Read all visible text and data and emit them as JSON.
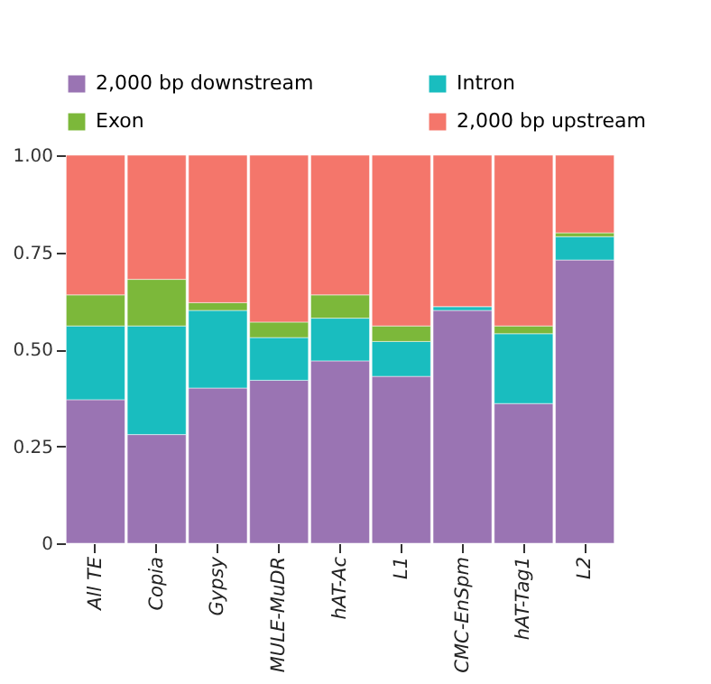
{
  "chart_data": {
    "type": "bar",
    "stacked": true,
    "categories": [
      "All TE",
      "Copia",
      "Gypsy",
      "MULE-MuDR",
      "hAT-Ac",
      "L1",
      "CMC-EnSpm",
      "hAT-Tag1",
      "L2"
    ],
    "series": [
      {
        "name": "2,000 bp downstream",
        "color": "#9a74b3",
        "values": [
          0.37,
          0.28,
          0.4,
          0.42,
          0.47,
          0.43,
          0.6,
          0.36,
          0.73
        ]
      },
      {
        "name": "Intron",
        "color": "#19bdbf",
        "values": [
          0.19,
          0.28,
          0.2,
          0.11,
          0.11,
          0.09,
          0.01,
          0.18,
          0.06
        ]
      },
      {
        "name": "Exon",
        "color": "#7cb83a",
        "values": [
          0.08,
          0.12,
          0.02,
          0.04,
          0.06,
          0.04,
          0.0,
          0.02,
          0.01
        ]
      },
      {
        "name": "2,000 bp upstream",
        "color": "#f4766b",
        "values": [
          0.36,
          0.32,
          0.38,
          0.43,
          0.36,
          0.44,
          0.39,
          0.44,
          0.2
        ]
      }
    ],
    "ylim": [
      0,
      1
    ],
    "yticks": [
      {
        "value": 0,
        "label": "0"
      },
      {
        "value": 0.25,
        "label": "0.25"
      },
      {
        "value": 0.5,
        "label": "0.50"
      },
      {
        "value": 0.75,
        "label": "0.75"
      },
      {
        "value": 1,
        "label": "1.00"
      }
    ],
    "grid": false,
    "legend": "top"
  }
}
